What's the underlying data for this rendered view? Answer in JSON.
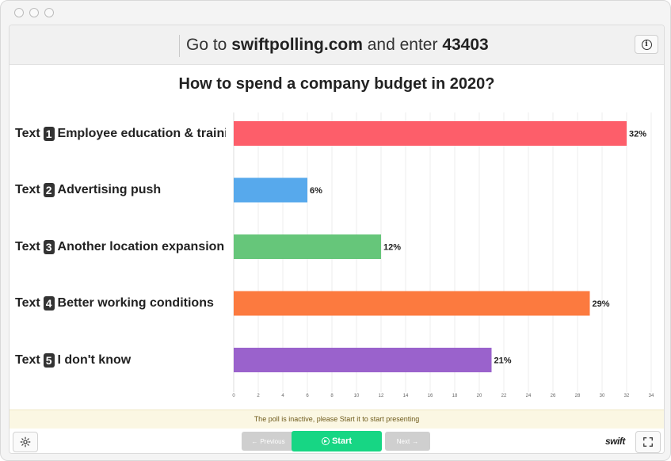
{
  "header": {
    "prefix": "Go to",
    "site": "swiftpolling.com",
    "middle": "and enter",
    "code": "43403"
  },
  "icons": {
    "info": "info-icon",
    "settings": "gear-icon",
    "fullscreen": "expand-icon",
    "play": "play-icon"
  },
  "chart_data": {
    "type": "bar",
    "orientation": "horizontal",
    "title": "How to spend a company budget in 2020?",
    "categories": [
      "Employee education & traini",
      "Advertising push",
      "Another location expansion",
      "Better working conditions",
      "I don't know"
    ],
    "row_prefix": "Text",
    "row_numbers": [
      "1",
      "2",
      "3",
      "4",
      "5"
    ],
    "values": [
      32,
      6,
      12,
      29,
      21
    ],
    "value_labels": [
      "32%",
      "6%",
      "12%",
      "29%",
      "21%"
    ],
    "colors": [
      "#fd5e6a",
      "#57a9ec",
      "#66c67a",
      "#fc7a3f",
      "#9a62cc"
    ],
    "xlim": [
      0,
      34
    ],
    "xticks": [
      0,
      2,
      4,
      6,
      8,
      10,
      12,
      14,
      16,
      18,
      20,
      22,
      24,
      26,
      28,
      30,
      32,
      34
    ],
    "grid": true
  },
  "notice": "The poll is inactive, please Start it to start presenting",
  "controls": {
    "previous": "Previous",
    "start": "Start",
    "next": "Next",
    "prev_arrow": "←",
    "next_arrow": "→"
  },
  "brand": "swift"
}
